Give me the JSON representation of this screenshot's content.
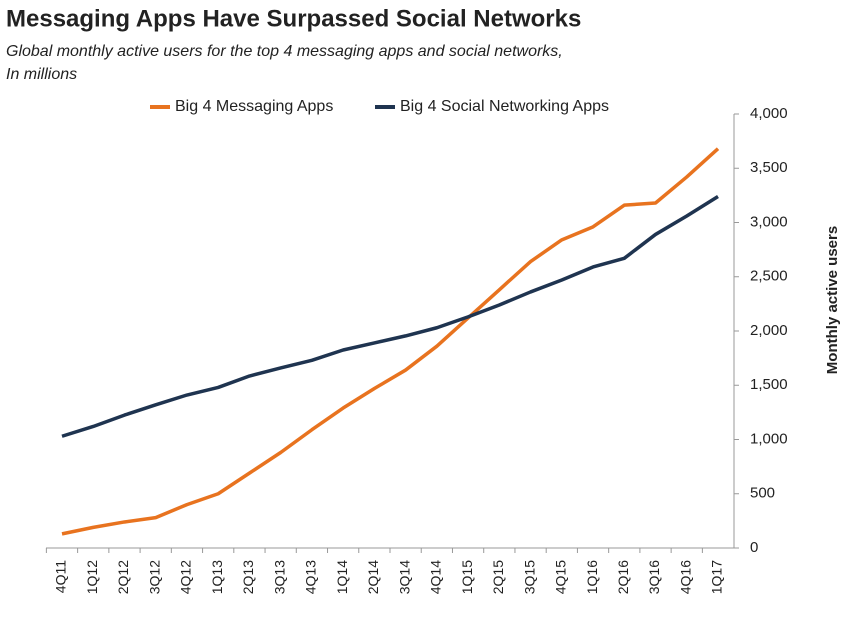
{
  "chart_data": {
    "type": "line",
    "title": "Messaging Apps Have Surpassed Social Networks",
    "subtitle": [
      "Global monthly active users for the top 4 messaging apps and social networks,",
      "In millions"
    ],
    "y_label": "Monthly active users",
    "categories": [
      "4Q11",
      "1Q12",
      "2Q12",
      "3Q12",
      "4Q12",
      "1Q13",
      "2Q13",
      "3Q13",
      "4Q13",
      "1Q14",
      "2Q14",
      "3Q14",
      "4Q14",
      "1Q15",
      "2Q15",
      "3Q15",
      "4Q15",
      "1Q16",
      "2Q16",
      "3Q16",
      "4Q16",
      "1Q17"
    ],
    "series": [
      {
        "name": "Big 4 Messaging Apps",
        "color": "#e8731f",
        "values": [
          130,
          190,
          240,
          280,
          400,
          500,
          690,
          880,
          1090,
          1290,
          1470,
          1640,
          1860,
          2120,
          2380,
          2640,
          2840,
          2960,
          3160,
          3180,
          3420,
          3680
        ]
      },
      {
        "name": "Big 4 Social Networking Apps",
        "color": "#1f3450",
        "values": [
          1030,
          1120,
          1225,
          1320,
          1410,
          1480,
          1585,
          1660,
          1730,
          1825,
          1890,
          1955,
          2030,
          2130,
          2240,
          2360,
          2470,
          2590,
          2670,
          2890,
          3060,
          3240
        ]
      }
    ],
    "ylim": [
      0,
      4000
    ],
    "yticks": [
      0,
      500,
      {
        "value": 1000,
        "label": "1,000"
      },
      {
        "value": 1500,
        "label": "1,500"
      },
      {
        "value": 2000,
        "label": "2,000"
      },
      {
        "value": 2500,
        "label": "2,500"
      },
      {
        "value": 3000,
        "label": "3,000"
      },
      {
        "value": 3500,
        "label": "3,500"
      },
      {
        "value": 4000,
        "label": "4,000"
      }
    ],
    "y_axis_side": "right",
    "grid": false,
    "legend": "top"
  }
}
